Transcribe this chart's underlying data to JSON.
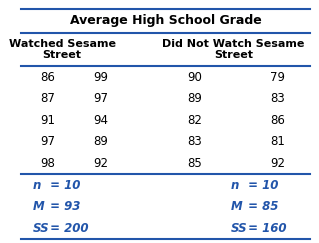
{
  "title": "Average High School Grade",
  "col1_header": "Watched Sesame\nStreet",
  "col2_header": "Did Not Watch Sesame\nStreet",
  "data_rows": [
    [
      "86",
      "99",
      "90",
      "79"
    ],
    [
      "87",
      "97",
      "89",
      "83"
    ],
    [
      "91",
      "94",
      "82",
      "86"
    ],
    [
      "97",
      "89",
      "83",
      "81"
    ],
    [
      "98",
      "92",
      "85",
      "92"
    ]
  ],
  "stats_left": [
    "n = 10",
    "M = 93",
    "SS = 200"
  ],
  "stats_right": [
    "n = 10",
    "M = 85",
    "SS = 160"
  ],
  "header_color": "#2255aa",
  "line_color": "#2255aa",
  "bg_color": "#ffffff",
  "text_color": "#000000",
  "stats_color": "#2255aa"
}
